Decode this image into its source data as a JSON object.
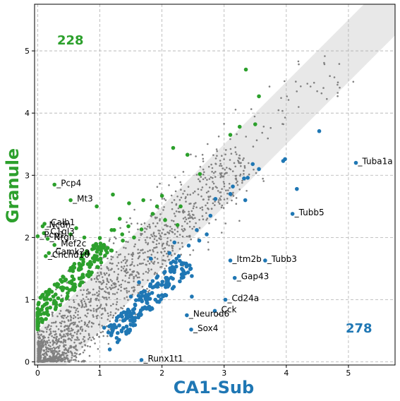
{
  "chart_data": {
    "type": "scatter",
    "xlabel": "CA1-Sub",
    "ylabel": "Granule",
    "xlim": [
      -0.05,
      5.75
    ],
    "ylim": [
      -0.05,
      5.75
    ],
    "x_ticks": [
      0,
      1,
      2,
      3,
      4,
      5
    ],
    "y_ticks": [
      0,
      1,
      2,
      3,
      4,
      5
    ],
    "grid": true,
    "colors": {
      "granule": "#2ca02c",
      "ca1sub": "#1f77b4",
      "background": "#808080",
      "band": "#e8e8e8"
    },
    "counts": {
      "granule": "228",
      "ca1sub": "278"
    },
    "band": {
      "description": "diagonal y=x band",
      "half_width": 0.5
    },
    "labeled_genes": [
      {
        "name": "Tuba1a",
        "x": 5.12,
        "y": 3.2,
        "group": "ca1sub"
      },
      {
        "name": "Tubb5",
        "x": 4.1,
        "y": 2.38,
        "group": "ca1sub"
      },
      {
        "name": "Tubb3",
        "x": 3.66,
        "y": 1.63,
        "group": "ca1sub"
      },
      {
        "name": "Itm2b",
        "x": 3.1,
        "y": 1.63,
        "group": "ca1sub"
      },
      {
        "name": "Gap43",
        "x": 3.17,
        "y": 1.35,
        "group": "ca1sub"
      },
      {
        "name": "Cd24a",
        "x": 3.02,
        "y": 1.0,
        "group": "ca1sub"
      },
      {
        "name": "Cck",
        "x": 2.85,
        "y": 0.82,
        "group": "ca1sub"
      },
      {
        "name": "Neurod6",
        "x": 2.4,
        "y": 0.75,
        "group": "ca1sub"
      },
      {
        "name": "Sox4",
        "x": 2.47,
        "y": 0.52,
        "group": "ca1sub"
      },
      {
        "name": "Runx1t1",
        "x": 1.67,
        "y": 0.03,
        "group": "ca1sub"
      },
      {
        "name": "Pcp4",
        "x": 0.27,
        "y": 2.85,
        "group": "granule"
      },
      {
        "name": "Mt3",
        "x": 0.53,
        "y": 2.6,
        "group": "granule"
      },
      {
        "name": "Calb1",
        "x": 0.11,
        "y": 2.22,
        "group": "granule"
      },
      {
        "name": "Ncdn",
        "x": 0.08,
        "y": 2.18,
        "group": "granule"
      },
      {
        "name": "C1ql3",
        "x": 0.1,
        "y": 2.07,
        "group": "granule"
      },
      {
        "name": "Pcp1",
        "x": 0.0,
        "y": 2.02,
        "group": "granule"
      },
      {
        "name": "Nrgn",
        "x": 0.16,
        "y": 1.98,
        "group": "granule"
      },
      {
        "name": "Mef2c",
        "x": 0.27,
        "y": 1.88,
        "group": "granule"
      },
      {
        "name": "Camk2a",
        "x": 0.18,
        "y": 1.75,
        "group": "granule"
      },
      {
        "name": "Chchd10",
        "x": 0.13,
        "y": 1.7,
        "group": "granule"
      }
    ],
    "granule_points": [
      [
        3.35,
        4.7
      ],
      [
        3.56,
        4.27
      ],
      [
        3.25,
        3.78
      ],
      [
        3.5,
        3.82
      ],
      [
        3.1,
        3.65
      ],
      [
        2.18,
        3.44
      ],
      [
        2.41,
        3.33
      ],
      [
        2.61,
        3.02
      ],
      [
        1.21,
        2.69
      ],
      [
        0.95,
        2.5
      ],
      [
        1.47,
        2.55
      ],
      [
        1.7,
        2.6
      ],
      [
        2.0,
        2.67
      ],
      [
        1.92,
        2.5
      ],
      [
        2.3,
        2.5
      ],
      [
        1.85,
        2.38
      ],
      [
        2.25,
        2.2
      ],
      [
        2.05,
        2.28
      ],
      [
        1.67,
        2.13
      ],
      [
        1.32,
        2.3
      ],
      [
        1.46,
        2.18
      ],
      [
        1.36,
        2.05
      ],
      [
        1.55,
        2.0
      ],
      [
        1.23,
        2.12
      ],
      [
        1.19,
        2.12
      ],
      [
        1.0,
        1.85
      ],
      [
        1.37,
        1.95
      ],
      [
        0.62,
        2.15
      ],
      [
        0.75,
        2.0
      ],
      [
        0.53,
        2.05
      ]
    ],
    "ca1sub_points": [
      [
        4.53,
        3.71
      ],
      [
        3.98,
        3.26
      ],
      [
        3.95,
        3.23
      ],
      [
        4.17,
        2.78
      ],
      [
        3.56,
        3.1
      ],
      [
        3.46,
        3.18
      ],
      [
        3.32,
        2.95
      ],
      [
        3.38,
        2.96
      ],
      [
        3.14,
        2.82
      ],
      [
        3.1,
        2.7
      ],
      [
        2.86,
        2.62
      ],
      [
        2.78,
        2.35
      ],
      [
        3.34,
        2.6
      ],
      [
        2.56,
        2.12
      ],
      [
        2.72,
        2.05
      ],
      [
        2.6,
        1.95
      ],
      [
        2.43,
        1.87
      ],
      [
        2.2,
        1.92
      ],
      [
        2.12,
        1.75
      ],
      [
        1.82,
        1.66
      ],
      [
        2.48,
        1.38
      ],
      [
        1.85,
        1.3
      ],
      [
        1.63,
        1.28
      ],
      [
        2.48,
        1.05
      ],
      [
        2.17,
        1.18
      ],
      [
        1.5,
        1.05
      ],
      [
        2.0,
        1.24
      ],
      [
        2.35,
        1.45
      ],
      [
        1.07,
        0.55
      ],
      [
        1.16,
        0.2
      ]
    ]
  }
}
